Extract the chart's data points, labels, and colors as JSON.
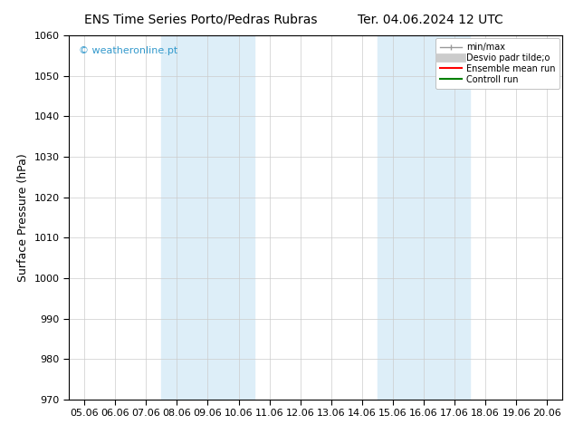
{
  "title_left": "ENS Time Series Porto/Pedras Rubras",
  "title_right": "Ter. 04.06.2024 12 UTC",
  "ylabel": "Surface Pressure (hPa)",
  "ylim": [
    970,
    1060
  ],
  "yticks": [
    970,
    980,
    990,
    1000,
    1010,
    1020,
    1030,
    1040,
    1050,
    1060
  ],
  "xtick_labels": [
    "05.06",
    "06.06",
    "07.06",
    "08.06",
    "09.06",
    "10.06",
    "11.06",
    "12.06",
    "13.06",
    "14.06",
    "15.06",
    "16.06",
    "17.06",
    "18.06",
    "19.06",
    "20.06"
  ],
  "shaded_bands": [
    {
      "xmin": 3,
      "xmax": 5
    },
    {
      "xmin": 10,
      "xmax": 12
    }
  ],
  "shaded_color": "#ddeef8",
  "watermark": "© weatheronline.pt",
  "watermark_color": "#3399cc",
  "legend_labels": [
    "min/max",
    "Desvio padr tilde;o",
    "Ensemble mean run",
    "Controll run"
  ],
  "legend_colors": [
    "#999999",
    "#cccccc",
    "#ff0000",
    "#008000"
  ],
  "bg_color": "#ffffff",
  "plot_bg_color": "#ffffff",
  "grid_color": "#cccccc",
  "spine_color": "#000000",
  "title_fontsize": 10,
  "tick_fontsize": 8,
  "ylabel_fontsize": 9,
  "watermark_fontsize": 8
}
